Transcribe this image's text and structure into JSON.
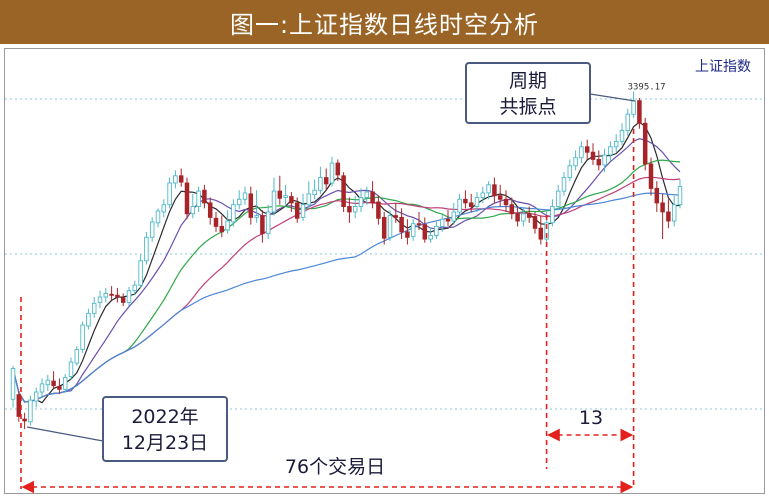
{
  "title": "图一:上证指数日线时空分析",
  "chart_data": {
    "type": "candlestick",
    "index_label": "上证指数",
    "peak_value_label": "3395.17",
    "callout_peak": [
      "周期",
      "共振点"
    ],
    "callout_start": [
      "2022年",
      "12月23日"
    ],
    "interval_short_label": "13",
    "interval_long_label": "76个交易日",
    "ylim": [
      3000,
      3420
    ],
    "grid": "horizontal-dotted",
    "colors": {
      "up": "#4fb9c8",
      "down": "#a72428",
      "ma5": "#2a2a2a",
      "ma10": "#6a4fb0",
      "ma20": "#2fa84a",
      "ma30": "#c0407a",
      "ma60": "#4a86d8",
      "annotation": "#e3211c",
      "callout_border": "#4a5a80",
      "banner": "#9b6427"
    },
    "candles": [
      [
        3055,
        3089,
        3092,
        3046
      ],
      [
        3060,
        3036,
        3064,
        3030
      ],
      [
        3033,
        3031,
        3040,
        3022
      ],
      [
        3030,
        3054,
        3059,
        3026
      ],
      [
        3053,
        3063,
        3068,
        3046
      ],
      [
        3063,
        3072,
        3078,
        3058
      ],
      [
        3071,
        3076,
        3082,
        3064
      ],
      [
        3075,
        3070,
        3086,
        3066
      ],
      [
        3069,
        3066,
        3078,
        3061
      ],
      [
        3066,
        3079,
        3083,
        3062
      ],
      [
        3080,
        3096,
        3101,
        3077
      ],
      [
        3095,
        3110,
        3114,
        3092
      ],
      [
        3110,
        3137,
        3141,
        3106
      ],
      [
        3136,
        3150,
        3155,
        3132
      ],
      [
        3150,
        3161,
        3168,
        3145
      ],
      [
        3162,
        3168,
        3175,
        3156
      ],
      [
        3168,
        3172,
        3178,
        3162
      ],
      [
        3171,
        3170,
        3180,
        3164
      ],
      [
        3170,
        3168,
        3178,
        3162
      ],
      [
        3167,
        3162,
        3172,
        3158
      ],
      [
        3162,
        3175,
        3179,
        3158
      ],
      [
        3175,
        3181,
        3186,
        3170
      ],
      [
        3181,
        3208,
        3215,
        3178
      ],
      [
        3208,
        3234,
        3240,
        3204
      ],
      [
        3234,
        3251,
        3256,
        3229
      ],
      [
        3250,
        3263,
        3266,
        3245
      ],
      [
        3262,
        3270,
        3276,
        3256
      ],
      [
        3270,
        3294,
        3300,
        3266
      ],
      [
        3294,
        3302,
        3308,
        3288
      ],
      [
        3302,
        3295,
        3310,
        3290
      ],
      [
        3294,
        3260,
        3300,
        3254
      ],
      [
        3260,
        3268,
        3282,
        3255
      ],
      [
        3268,
        3285,
        3290,
        3262
      ],
      [
        3286,
        3272,
        3292,
        3266
      ],
      [
        3272,
        3256,
        3278,
        3248
      ],
      [
        3255,
        3246,
        3262,
        3240
      ],
      [
        3246,
        3240,
        3258,
        3234
      ],
      [
        3242,
        3252,
        3264,
        3238
      ],
      [
        3251,
        3270,
        3276,
        3246
      ],
      [
        3270,
        3276,
        3286,
        3265
      ],
      [
        3276,
        3283,
        3290,
        3270
      ],
      [
        3282,
        3256,
        3290,
        3248
      ],
      [
        3256,
        3258,
        3286,
        3250
      ],
      [
        3258,
        3238,
        3264,
        3228
      ],
      [
        3238,
        3262,
        3270,
        3232
      ],
      [
        3262,
        3285,
        3300,
        3258
      ],
      [
        3285,
        3277,
        3302,
        3270
      ],
      [
        3278,
        3280,
        3292,
        3270
      ],
      [
        3279,
        3272,
        3284,
        3262
      ],
      [
        3272,
        3255,
        3278,
        3250
      ],
      [
        3256,
        3270,
        3282,
        3252
      ],
      [
        3270,
        3282,
        3296,
        3266
      ],
      [
        3281,
        3286,
        3298,
        3276
      ],
      [
        3286,
        3300,
        3312,
        3282
      ],
      [
        3300,
        3293,
        3310,
        3286
      ],
      [
        3294,
        3316,
        3323,
        3290
      ],
      [
        3316,
        3303,
        3320,
        3296
      ],
      [
        3302,
        3268,
        3306,
        3262
      ],
      [
        3268,
        3262,
        3278,
        3250
      ],
      [
        3262,
        3268,
        3280,
        3255
      ],
      [
        3268,
        3278,
        3288,
        3262
      ],
      [
        3278,
        3284,
        3290,
        3270
      ],
      [
        3284,
        3272,
        3296,
        3266
      ],
      [
        3273,
        3255,
        3280,
        3248
      ],
      [
        3256,
        3233,
        3262,
        3226
      ],
      [
        3234,
        3258,
        3264,
        3230
      ],
      [
        3258,
        3256,
        3272,
        3250
      ],
      [
        3256,
        3240,
        3266,
        3232
      ],
      [
        3240,
        3234,
        3254,
        3226
      ],
      [
        3235,
        3249,
        3254,
        3230
      ],
      [
        3249,
        3248,
        3262,
        3242
      ],
      [
        3248,
        3232,
        3256,
        3228
      ],
      [
        3232,
        3236,
        3245,
        3228
      ],
      [
        3236,
        3246,
        3252,
        3232
      ],
      [
        3246,
        3254,
        3260,
        3240
      ],
      [
        3254,
        3252,
        3264,
        3246
      ],
      [
        3252,
        3262,
        3272,
        3248
      ],
      [
        3262,
        3276,
        3282,
        3258
      ],
      [
        3276,
        3272,
        3286,
        3266
      ],
      [
        3272,
        3268,
        3282,
        3262
      ],
      [
        3268,
        3278,
        3284,
        3262
      ],
      [
        3278,
        3283,
        3290,
        3272
      ],
      [
        3283,
        3292,
        3296,
        3276
      ],
      [
        3292,
        3280,
        3300,
        3272
      ],
      [
        3280,
        3276,
        3292,
        3268
      ],
      [
        3276,
        3270,
        3286,
        3262
      ],
      [
        3270,
        3260,
        3278,
        3254
      ],
      [
        3260,
        3252,
        3268,
        3246
      ],
      [
        3252,
        3260,
        3266,
        3246
      ],
      [
        3260,
        3256,
        3268,
        3250
      ],
      [
        3257,
        3244,
        3262,
        3238
      ],
      [
        3244,
        3232,
        3258,
        3226
      ],
      [
        3232,
        3250,
        3262,
        3228
      ],
      [
        3250,
        3268,
        3276,
        3246
      ],
      [
        3268,
        3285,
        3292,
        3264
      ],
      [
        3285,
        3300,
        3306,
        3280
      ],
      [
        3300,
        3313,
        3320,
        3296
      ],
      [
        3313,
        3322,
        3330,
        3308
      ],
      [
        3322,
        3334,
        3340,
        3316
      ],
      [
        3334,
        3328,
        3342,
        3320
      ],
      [
        3328,
        3320,
        3338,
        3314
      ],
      [
        3320,
        3314,
        3330,
        3308
      ],
      [
        3314,
        3325,
        3332,
        3306
      ],
      [
        3325,
        3334,
        3340,
        3318
      ],
      [
        3334,
        3340,
        3348,
        3328
      ],
      [
        3340,
        3352,
        3360,
        3336
      ],
      [
        3352,
        3370,
        3376,
        3346
      ],
      [
        3370,
        3385,
        3395.17,
        3366
      ],
      [
        3385,
        3360,
        3388,
        3354
      ],
      [
        3360,
        3315,
        3366,
        3308
      ],
      [
        3315,
        3288,
        3322,
        3280
      ],
      [
        3288,
        3272,
        3296,
        3262
      ],
      [
        3272,
        3262,
        3282,
        3232
      ],
      [
        3262,
        3252,
        3276,
        3244
      ],
      [
        3252,
        3270,
        3280,
        3246
      ],
      [
        3270,
        3290,
        3298,
        3266
      ]
    ]
  }
}
